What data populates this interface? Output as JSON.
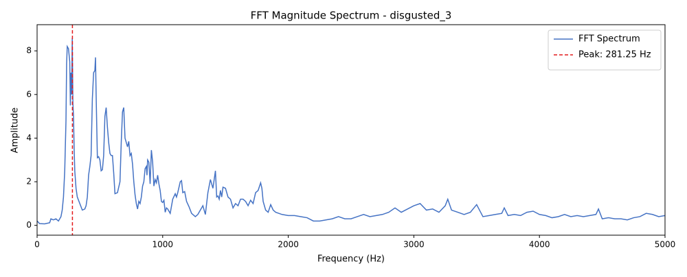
{
  "chart_data": {
    "type": "line",
    "title": "FFT Magnitude Spectrum - disgusted_3",
    "xlabel": "Frequency (Hz)",
    "ylabel": "Amplitude",
    "x": [
      0,
      20,
      60,
      100,
      110,
      130,
      150,
      170,
      190,
      200,
      210,
      220,
      230,
      235,
      240,
      250,
      260,
      265,
      270,
      275,
      280,
      285,
      290,
      295,
      300,
      310,
      320,
      340,
      360,
      380,
      390,
      400,
      410,
      420,
      430,
      440,
      450,
      460,
      465,
      470,
      480,
      490,
      500,
      510,
      520,
      530,
      540,
      550,
      560,
      570,
      580,
      590,
      600,
      610,
      620,
      640,
      660,
      670,
      680,
      690,
      700,
      710,
      720,
      730,
      740,
      750,
      760,
      770,
      780,
      790,
      800,
      810,
      820,
      830,
      840,
      850,
      860,
      870,
      875,
      880,
      890,
      900,
      910,
      920,
      930,
      940,
      950,
      960,
      970,
      980,
      990,
      1000,
      1010,
      1020,
      1030,
      1040,
      1060,
      1080,
      1100,
      1110,
      1120,
      1140,
      1150,
      1160,
      1175,
      1190,
      1210,
      1230,
      1260,
      1280,
      1300,
      1320,
      1340,
      1360,
      1380,
      1400,
      1420,
      1430,
      1440,
      1450,
      1460,
      1470,
      1480,
      1500,
      1520,
      1540,
      1560,
      1580,
      1600,
      1620,
      1640,
      1660,
      1680,
      1700,
      1720,
      1740,
      1760,
      1780,
      1790,
      1800,
      1820,
      1840,
      1860,
      1880,
      1900,
      1950,
      2000,
      2050,
      2100,
      2150,
      2200,
      2250,
      2300,
      2350,
      2400,
      2450,
      2500,
      2550,
      2600,
      2650,
      2700,
      2750,
      2800,
      2850,
      2900,
      2950,
      3000,
      3050,
      3100,
      3150,
      3200,
      3250,
      3270,
      3300,
      3350,
      3400,
      3450,
      3500,
      3550,
      3600,
      3650,
      3700,
      3720,
      3750,
      3800,
      3850,
      3900,
      3950,
      4000,
      4050,
      4100,
      4150,
      4200,
      4250,
      4300,
      4350,
      4400,
      4450,
      4470,
      4500,
      4550,
      4600,
      4650,
      4700,
      4750,
      4800,
      4850,
      4900,
      4950,
      5000
    ],
    "series": [
      {
        "name": "FFT Spectrum",
        "color": "#4472c4",
        "values": [
          0.2,
          0.08,
          0.07,
          0.12,
          0.3,
          0.25,
          0.3,
          0.2,
          0.4,
          0.7,
          1.3,
          2.5,
          4.8,
          7.4,
          8.2,
          8.1,
          7.5,
          5.5,
          7.0,
          6.0,
          8.6,
          5.6,
          5.0,
          3.5,
          2.5,
          1.7,
          1.3,
          1.0,
          0.7,
          0.75,
          0.9,
          1.3,
          2.3,
          2.7,
          3.2,
          5.8,
          7.0,
          7.1,
          7.7,
          6.0,
          3.1,
          3.15,
          3.0,
          2.5,
          2.55,
          3.2,
          5.0,
          5.4,
          4.5,
          3.8,
          3.3,
          3.2,
          3.2,
          2.4,
          1.45,
          1.5,
          2.0,
          3.8,
          5.2,
          5.4,
          4.0,
          3.8,
          3.6,
          3.85,
          3.2,
          3.3,
          2.8,
          2.0,
          1.4,
          1.0,
          0.75,
          1.1,
          1.0,
          1.3,
          1.8,
          2.0,
          2.6,
          2.7,
          2.3,
          3.0,
          2.9,
          1.9,
          3.45,
          2.9,
          1.8,
          2.1,
          1.95,
          2.3,
          1.9,
          1.6,
          1.1,
          1.05,
          1.15,
          0.6,
          0.8,
          0.75,
          0.55,
          1.2,
          1.45,
          1.3,
          1.5,
          2.0,
          2.05,
          1.5,
          1.55,
          1.1,
          0.85,
          0.55,
          0.4,
          0.5,
          0.7,
          0.9,
          0.5,
          1.5,
          2.1,
          1.7,
          2.5,
          1.3,
          1.35,
          1.2,
          1.6,
          1.3,
          1.75,
          1.7,
          1.3,
          1.2,
          0.8,
          1.0,
          0.9,
          1.2,
          1.2,
          1.1,
          0.9,
          1.15,
          1.0,
          1.5,
          1.6,
          1.95,
          1.7,
          1.1,
          0.7,
          0.6,
          0.95,
          0.7,
          0.6,
          0.5,
          0.45,
          0.45,
          0.4,
          0.35,
          0.2,
          0.2,
          0.25,
          0.3,
          0.4,
          0.3,
          0.3,
          0.4,
          0.5,
          0.4,
          0.45,
          0.5,
          0.6,
          0.8,
          0.6,
          0.75,
          0.9,
          1.0,
          0.7,
          0.75,
          0.6,
          0.9,
          1.2,
          0.7,
          0.6,
          0.5,
          0.6,
          0.95,
          0.4,
          0.45,
          0.5,
          0.55,
          0.8,
          0.45,
          0.5,
          0.45,
          0.6,
          0.65,
          0.5,
          0.45,
          0.35,
          0.4,
          0.5,
          0.4,
          0.45,
          0.4,
          0.45,
          0.5,
          0.75,
          0.3,
          0.35,
          0.3,
          0.3,
          0.25,
          0.35,
          0.4,
          0.55,
          0.5,
          0.4,
          0.45
        ]
      }
    ],
    "reference_line": {
      "x": 281.25,
      "name": "Peak: 281.25 Hz",
      "color": "#e41a1c"
    },
    "xlim": [
      0,
      5000
    ],
    "xticks": [
      0,
      1000,
      2000,
      3000,
      4000,
      5000
    ],
    "ylim": [
      -0.45,
      9.2
    ],
    "yticks": [
      0,
      2,
      4,
      6,
      8
    ],
    "grid": false,
    "legend": "upper right"
  }
}
